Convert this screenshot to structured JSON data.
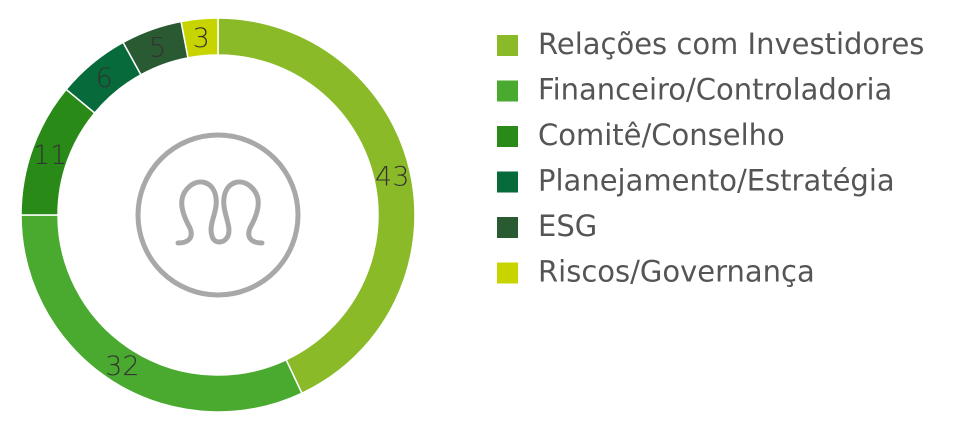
{
  "chart_data": {
    "type": "donut",
    "categories": [
      "Relações com Investidores",
      "Financeiro/Controladoria",
      "Comitê/Conselho",
      "Planejamento/Estratégia",
      "ESG",
      "Riscos/Governança"
    ],
    "values": [
      43,
      32,
      11,
      6,
      5,
      3
    ],
    "colors": [
      "#8aba28",
      "#4aaa30",
      "#2a8a18",
      "#066a3a",
      "#2a5a32",
      "#c8d400"
    ],
    "legend": "right"
  }
}
